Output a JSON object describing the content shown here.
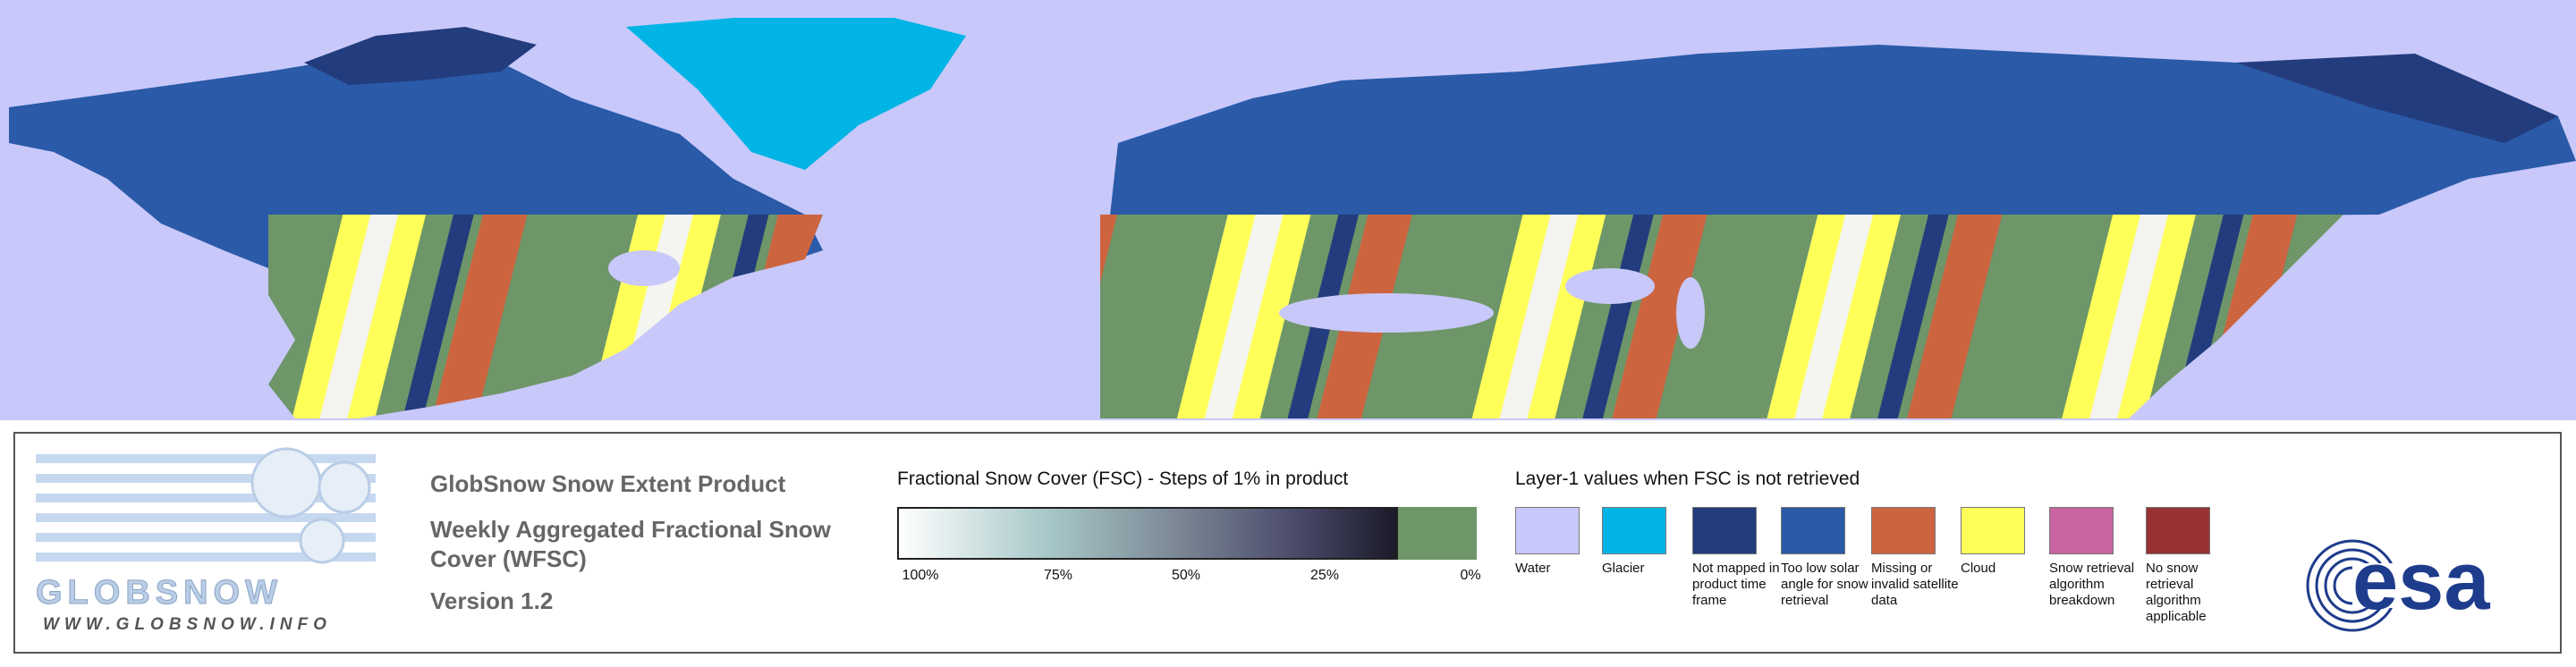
{
  "logo": {
    "name": "GLOBSNOW",
    "url": "WWW.GLOBSNOW.INFO"
  },
  "product": {
    "title": "GlobSnow Snow Extent Product",
    "subtitle": "Weekly Aggregated Fractional Snow Cover (WFSC)",
    "version": "Version 1.2"
  },
  "fsc_legend": {
    "title": "Fractional Snow Cover (FSC) - Steps of 1% in product",
    "labels": [
      "100%",
      "75%",
      "50%",
      "25%",
      "0%"
    ]
  },
  "layer1_legend": {
    "title": "Layer-1 values when FSC is not retrieved",
    "items": [
      {
        "label": "Water",
        "color": "#c8c8fa"
      },
      {
        "label": "Glacier",
        "color": "#00b4e6"
      },
      {
        "label": "Not mapped in product time frame",
        "color": "#233c7d"
      },
      {
        "label": "Too low solar angle for snow retrieval",
        "color": "#2a5aa8"
      },
      {
        "label": "Missing or invalid satellite data",
        "color": "#cd6440"
      },
      {
        "label": "Cloud",
        "color": "#ffff5a"
      },
      {
        "label": "Snow retrieval algorithm breakdown",
        "color": "#c864a0"
      },
      {
        "label": "No snow retrieval algorithm applicable",
        "color": "#963232"
      }
    ]
  },
  "esa_logo": "esa"
}
